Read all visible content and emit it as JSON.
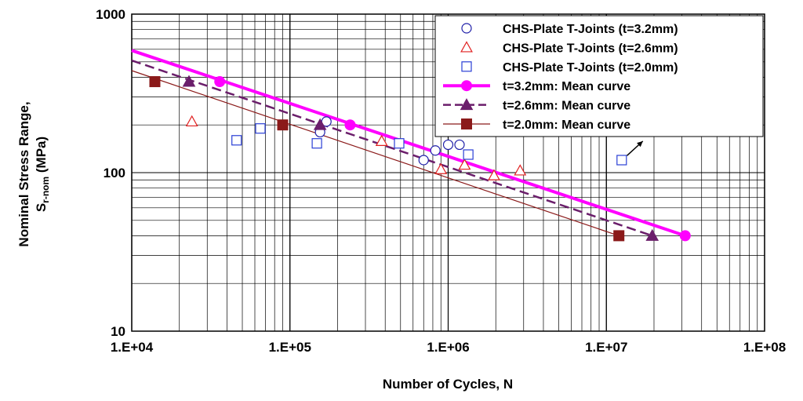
{
  "chart_data": {
    "type": "scatter",
    "title": "",
    "xlabel": "Number of Cycles, N",
    "ylabel_line1": "Nominal Stress Range,",
    "ylabel_line2_main": "S",
    "ylabel_line2_sub": "r-nom",
    "ylabel_line2_tail": " (MPa)",
    "x_scale": "log",
    "y_scale": "log",
    "xlim": [
      10000,
      100000000
    ],
    "ylim": [
      10,
      1000
    ],
    "grid": true,
    "legend_position": "top-right",
    "x_ticks": [
      {
        "value": 10000,
        "label": "1.E+04"
      },
      {
        "value": 100000,
        "label": "1.E+05"
      },
      {
        "value": 1000000,
        "label": "1.E+06"
      },
      {
        "value": 10000000,
        "label": "1.E+07"
      },
      {
        "value": 100000000,
        "label": "1.E+08"
      }
    ],
    "y_ticks": [
      {
        "value": 10,
        "label": "10"
      },
      {
        "value": 100,
        "label": "100"
      },
      {
        "value": 1000,
        "label": "1000"
      }
    ],
    "series": [
      {
        "name": "CHS-Plate T-Joints (t=3.2mm)",
        "kind": "scatter",
        "marker": "circle",
        "filled": false,
        "color": "#1f1fa8",
        "points": [
          [
            155000,
            180
          ],
          [
            170000,
            210
          ],
          [
            700000,
            120
          ],
          [
            830000,
            138
          ],
          [
            1000000,
            150
          ],
          [
            1180000,
            150
          ]
        ]
      },
      {
        "name": "CHS-Plate T-Joints (t=2.6mm)",
        "kind": "scatter",
        "marker": "triangle",
        "filled": false,
        "color": "#e02020",
        "points": [
          [
            24000,
            210
          ],
          [
            380000,
            158
          ],
          [
            900000,
            105
          ],
          [
            1270000,
            112
          ],
          [
            1950000,
            96
          ],
          [
            2850000,
            103
          ]
        ]
      },
      {
        "name": "CHS-Plate T-Joints (t=2.0mm)",
        "kind": "scatter",
        "marker": "square",
        "filled": false,
        "color": "#2a3fd6",
        "points": [
          [
            46000,
            160
          ],
          [
            65000,
            190
          ],
          [
            148000,
            153
          ],
          [
            490000,
            153
          ],
          [
            1340000,
            130
          ],
          [
            12500000,
            120
          ]
        ]
      },
      {
        "name": "t=3.2mm: Mean curve",
        "kind": "line",
        "marker": "circle",
        "filled": true,
        "color": "#ff00ff",
        "dash": "solid",
        "width": 4,
        "line_points": [
          [
            10000,
            590
          ],
          [
            31500000,
            40
          ]
        ],
        "points": [
          [
            36000,
            375
          ],
          [
            240000,
            200
          ],
          [
            31500000,
            40
          ]
        ]
      },
      {
        "name": "t=2.6mm: Mean curve",
        "kind": "line",
        "marker": "triangle",
        "filled": true,
        "color": "#6b1e6b",
        "dash": "dashed",
        "width": 2.5,
        "line_points": [
          [
            10000,
            510
          ],
          [
            19500000,
            40
          ]
        ],
        "points": [
          [
            23000,
            375
          ],
          [
            155000,
            200
          ],
          [
            19500000,
            40
          ]
        ]
      },
      {
        "name": "t=2.0mm: Mean curve",
        "kind": "line",
        "marker": "square",
        "filled": true,
        "color": "#8b1a1a",
        "dash": "solid",
        "width": 1.2,
        "line_points": [
          [
            10000,
            440
          ],
          [
            12000000,
            40
          ]
        ],
        "points": [
          [
            14000,
            375
          ],
          [
            90000,
            200
          ],
          [
            12000000,
            40
          ]
        ]
      }
    ],
    "annotations": [
      {
        "type": "arrow",
        "from": [
          13500000,
          128
        ],
        "to": [
          17000000,
          158
        ],
        "color": "#000000"
      }
    ]
  }
}
